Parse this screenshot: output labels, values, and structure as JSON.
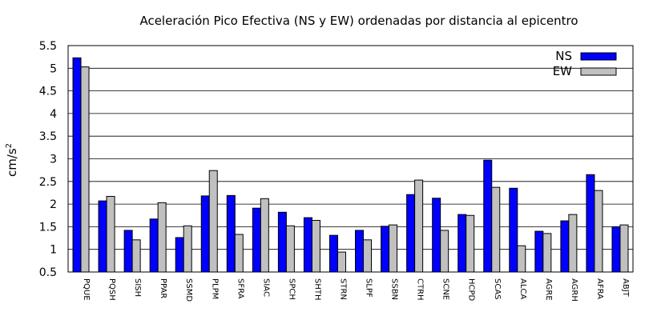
{
  "chart_data": {
    "type": "bar",
    "title": "Aceleración Pico Efectiva (NS y EW) ordenadas por distancia al epicentro",
    "xlabel": "",
    "ylabel": "cm/s",
    "ylabel_superscript": "2",
    "ylim": [
      0.5,
      5.5
    ],
    "yticks": [
      "0.5",
      "1",
      "1.5",
      "2",
      "2.5",
      "3",
      "3.5",
      "4",
      "4.5",
      "5",
      "5.5"
    ],
    "grid": true,
    "legend_position": "top-right",
    "categories": [
      "PQUE",
      "PQSH",
      "SISH",
      "PPAR",
      "SSMD",
      "PLPM",
      "SFRA",
      "SIAC",
      "SPCH",
      "SHTH",
      "STRN",
      "SLPF",
      "SSBN",
      "CTRH",
      "SCNE",
      "HCPD",
      "SCAS",
      "ALCA",
      "AGRE",
      "AGRH",
      "AFRA",
      "ABJT"
    ],
    "series": [
      {
        "name": "NS",
        "color": "#0000ff",
        "values": [
          5.23,
          2.07,
          1.42,
          1.67,
          1.26,
          2.18,
          2.19,
          1.91,
          1.82,
          1.7,
          1.31,
          1.42,
          1.51,
          2.21,
          2.13,
          1.77,
          2.97,
          2.35,
          1.4,
          1.63,
          2.65,
          1.5
        ]
      },
      {
        "name": "EW",
        "color": "#c0c0c0",
        "values": [
          5.03,
          2.17,
          1.21,
          2.03,
          1.52,
          2.74,
          1.33,
          2.12,
          1.52,
          1.64,
          0.94,
          1.21,
          1.54,
          2.53,
          1.42,
          1.75,
          2.37,
          1.08,
          1.35,
          1.77,
          2.3,
          1.54
        ]
      }
    ]
  }
}
